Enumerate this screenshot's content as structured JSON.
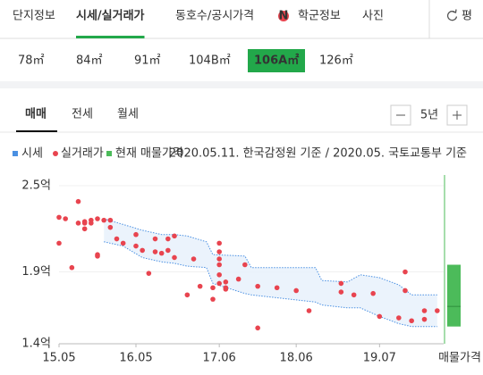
{
  "tabs": [
    "단지정보",
    "시세/실거래가",
    "동호수/공시가격",
    "학군정보",
    "사진"
  ],
  "active_tab": 1,
  "new_badge": "N",
  "unit_toggle": "평",
  "areas": [
    "78㎡",
    "84㎡",
    "91㎡",
    "104B㎡",
    "106A㎡",
    "126㎡"
  ],
  "active_area": 4,
  "deal_tabs": [
    "매매",
    "전세",
    "월세"
  ],
  "active_deal": 0,
  "period": "5년",
  "chart_data": {
    "type": "scatter",
    "note": "2020.05.11. 한국감정원 기준 / 2020.05. 국토교통부 기준",
    "band": {
      "name": "시세",
      "color": "#4a90e2",
      "x": [
        "15.12",
        "16.03",
        "16.06",
        "16.09",
        "16.11",
        "17.01",
        "17.04",
        "17.05",
        "17.10",
        "17.11",
        "18.09",
        "18.10",
        "19.02",
        "19.04",
        "19.07",
        "19.10",
        "19.12",
        "20.04"
      ],
      "upper": [
        2.27,
        2.23,
        2.19,
        2.16,
        2.16,
        2.15,
        2.11,
        2.02,
        2.01,
        1.93,
        1.93,
        1.84,
        1.83,
        1.88,
        1.86,
        1.81,
        1.74,
        1.74
      ],
      "lower": [
        2.11,
        2.08,
        2.0,
        1.97,
        1.96,
        1.94,
        1.93,
        1.82,
        1.75,
        1.74,
        1.69,
        1.67,
        1.65,
        1.65,
        1.59,
        1.54,
        1.52,
        1.52
      ]
    },
    "series": [
      {
        "name": "실거래가",
        "color": "#e8444f",
        "x": [
          "15.05",
          "15.05",
          "15.06",
          "15.07",
          "15.08",
          "15.08",
          "15.09",
          "15.09",
          "15.09",
          "15.10",
          "15.10",
          "15.11",
          "15.11",
          "15.11",
          "15.12",
          "16.01",
          "16.01",
          "16.02",
          "16.03",
          "16.05",
          "16.05",
          "16.06",
          "16.07",
          "16.08",
          "16.08",
          "16.09",
          "16.10",
          "16.10",
          "16.11",
          "16.11",
          "17.01",
          "17.02",
          "17.03",
          "17.05",
          "17.05",
          "17.06",
          "17.06",
          "17.06",
          "17.06",
          "17.06",
          "17.06",
          "17.07",
          "17.07",
          "17.07",
          "17.09",
          "17.10",
          "17.12",
          "17.12",
          "18.03",
          "18.06",
          "18.08",
          "19.01",
          "19.01",
          "19.03",
          "19.06",
          "19.07",
          "19.10",
          "19.11",
          "19.11",
          "19.12",
          "20.02",
          "20.02",
          "20.04"
        ],
        "values": [
          2.28,
          2.1,
          2.27,
          1.93,
          2.39,
          2.24,
          2.2,
          2.24,
          2.25,
          2.26,
          2.24,
          2.27,
          2.02,
          2.01,
          2.26,
          2.26,
          2.21,
          2.13,
          2.1,
          2.08,
          2.16,
          2.05,
          1.89,
          2.04,
          2.13,
          2.03,
          2.13,
          2.05,
          2.15,
          2.0,
          1.74,
          1.99,
          1.8,
          1.71,
          1.79,
          1.82,
          1.88,
          2.04,
          1.95,
          1.99,
          2.1,
          1.83,
          1.78,
          1.79,
          1.85,
          1.95,
          1.51,
          1.8,
          1.79,
          1.77,
          1.63,
          1.82,
          1.76,
          1.74,
          1.75,
          1.59,
          1.58,
          1.9,
          1.77,
          1.56,
          1.57,
          1.63,
          1.63
        ]
      }
    ],
    "listing": {
      "name": "현재 매물가격",
      "color": "#4cbb5a",
      "label": "매물가격",
      "min": 1.52,
      "max": 1.95,
      "mid": 1.66
    },
    "xlim": [
      "15.05",
      "20.05"
    ],
    "xticks": [
      "15.05",
      "16.05",
      "17.06",
      "18.06",
      "19.07"
    ],
    "ylim": [
      1.4,
      2.5
    ],
    "yticks": [
      {
        "value": 1.4,
        "label": "1.4억"
      },
      {
        "value": 1.9,
        "label": "1.9억"
      },
      {
        "value": 2.5,
        "label": "2.5억"
      }
    ],
    "grid": true
  }
}
